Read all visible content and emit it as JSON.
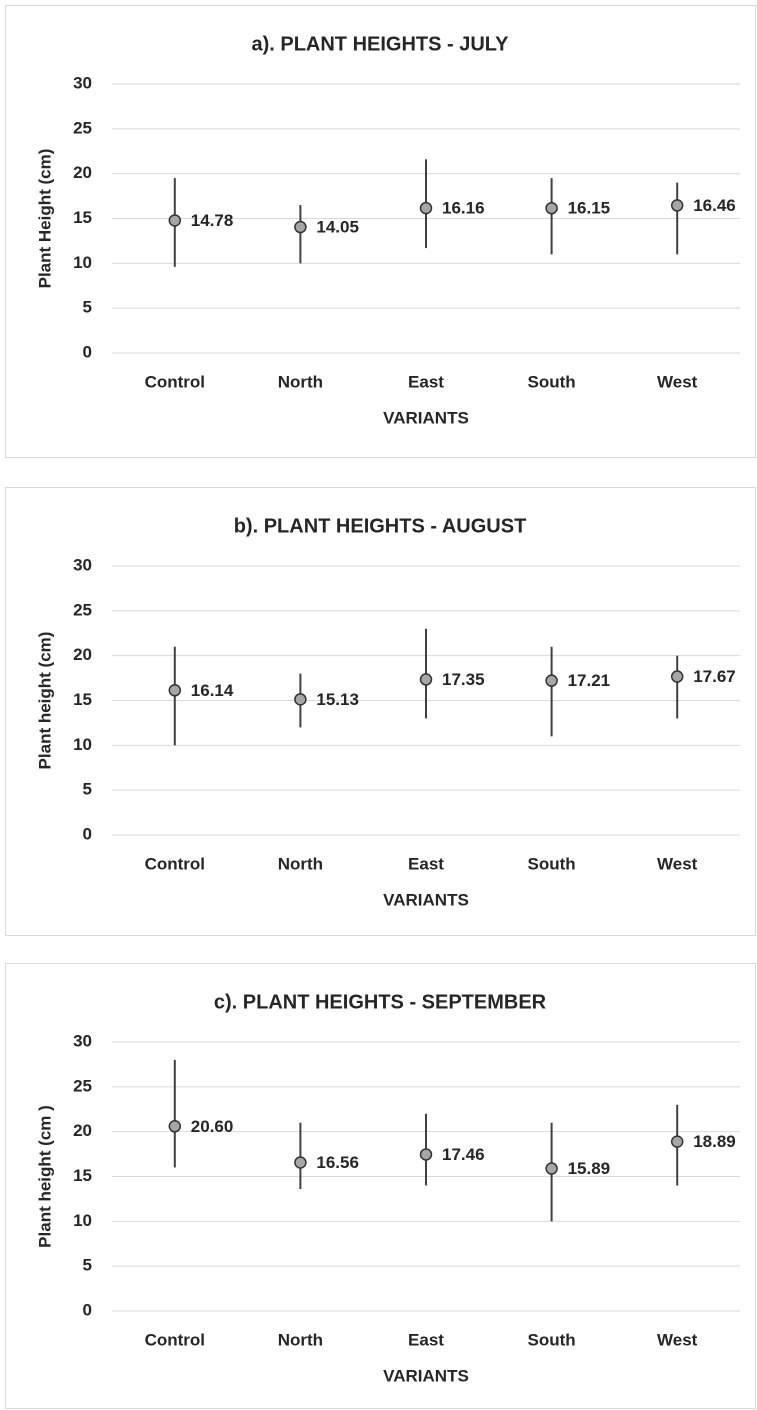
{
  "chart_data": [
    {
      "type": "errorpoint",
      "title": "a). PLANT HEIGHTS - JULY",
      "x_label": "VARIANTS",
      "y_label": "Plant Height (cm)",
      "categories": [
        "Control",
        "North",
        "East",
        "South",
        "West"
      ],
      "values": [
        14.78,
        14.05,
        16.16,
        16.15,
        16.46
      ],
      "value_labels": [
        "14.78",
        "14.05",
        "16.16",
        "16.15",
        "16.46"
      ],
      "lows": [
        9.6,
        10,
        11.7,
        11,
        11
      ],
      "highs": [
        19.5,
        16.5,
        21.6,
        19.5,
        19
      ],
      "color": "#a6a6a6",
      "ylim": [
        0,
        30
      ],
      "yticks": [
        0,
        5,
        10,
        15,
        20,
        25,
        30
      ],
      "grid": true
    },
    {
      "type": "errorpoint",
      "title": "b). PLANT HEIGHTS - AUGUST",
      "x_label": "VARIANTS",
      "y_label": "Plant height (cm)",
      "categories": [
        "Control",
        "North",
        "East",
        "South",
        "West"
      ],
      "values": [
        16.14,
        15.13,
        17.35,
        17.21,
        17.67
      ],
      "value_labels": [
        "16.14",
        "15.13",
        "17.35",
        "17.21",
        "17.67"
      ],
      "lows": [
        10,
        12,
        13,
        11,
        13
      ],
      "highs": [
        21,
        18,
        23,
        21,
        20
      ],
      "color": "#a6a6a6",
      "ylim": [
        0,
        30
      ],
      "yticks": [
        0,
        5,
        10,
        15,
        20,
        25,
        30
      ],
      "grid": true
    },
    {
      "type": "errorpoint",
      "title": "c). PLANT HEIGHTS - SEPTEMBER",
      "x_label": "VARIANTS",
      "y_label": "Plant height (cm )",
      "categories": [
        "Control",
        "North",
        "East",
        "South",
        "West"
      ],
      "values": [
        20.6,
        16.56,
        17.46,
        15.89,
        18.89
      ],
      "value_labels": [
        "20.60",
        "16.56",
        "17.46",
        "15.89",
        "18.89"
      ],
      "lows": [
        16,
        13.6,
        14,
        10,
        14
      ],
      "highs": [
        28,
        21,
        22,
        21,
        23
      ],
      "color": "#a6a6a6",
      "ylim": [
        0,
        30
      ],
      "yticks": [
        0,
        5,
        10,
        15,
        20,
        25,
        30
      ],
      "grid": true
    }
  ]
}
